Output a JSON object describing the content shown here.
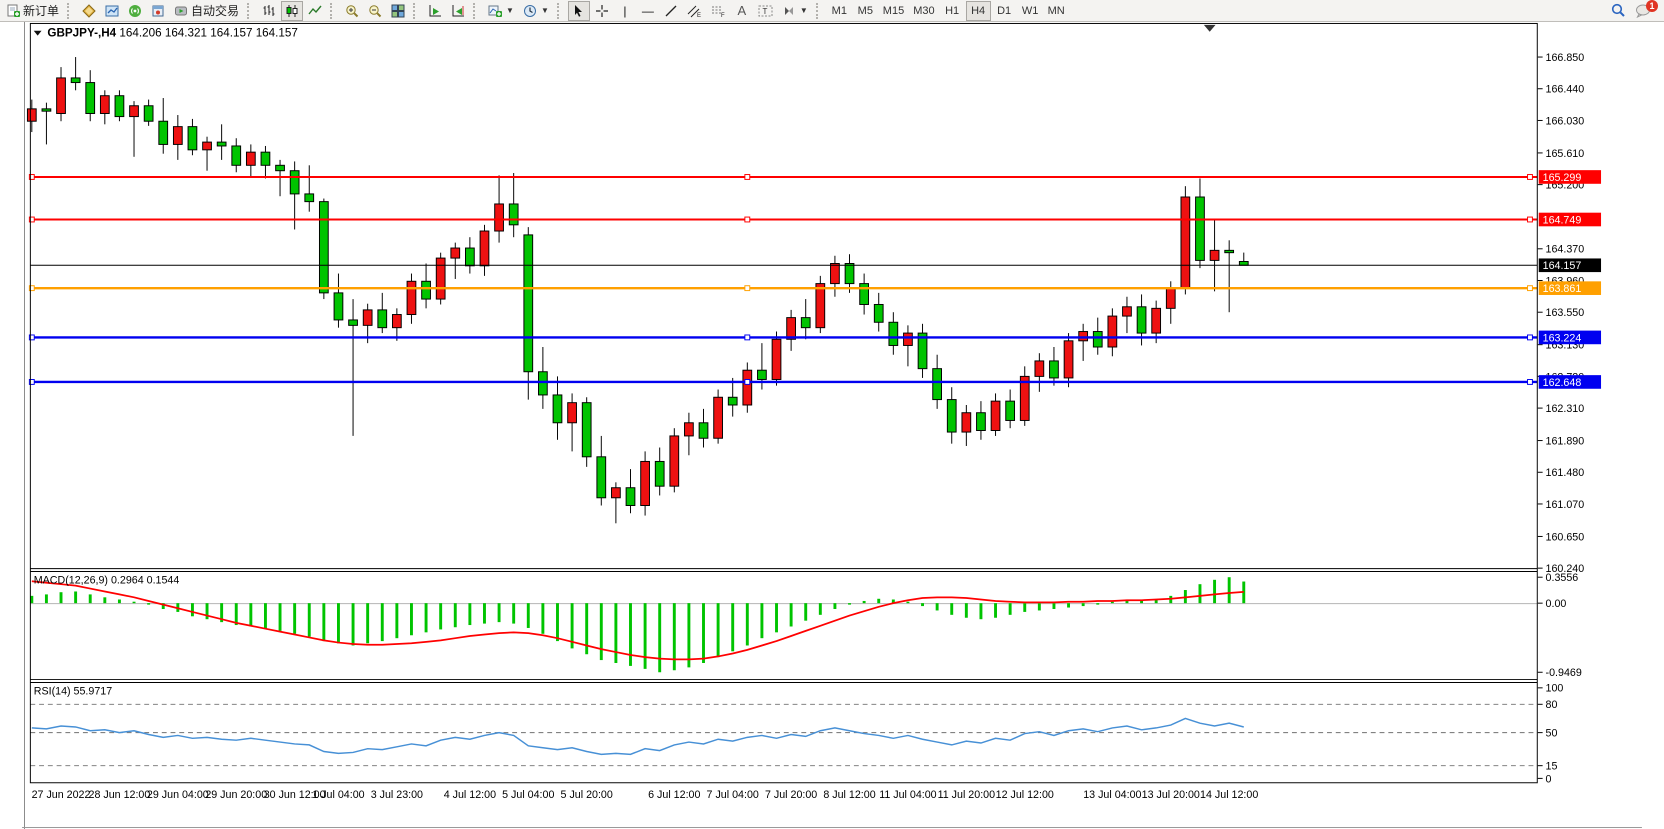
{
  "toolbar": {
    "new_order_label": "新订单",
    "autotrading_label": "自动交易",
    "timeframes": [
      "M1",
      "M5",
      "M15",
      "M30",
      "H1",
      "H4",
      "D1",
      "W1",
      "MN"
    ],
    "active_timeframe": "H4",
    "chat_badge": "1"
  },
  "chart_data": {
    "type": "candlestick",
    "symbol": "GBPJPY-",
    "timeframe": "H4",
    "title": "GBPJPY-,H4",
    "ohlc_text": "164.206 164.321 164.157 164.157",
    "ohlc": {
      "open": "164.206",
      "high": "164.321",
      "low": "164.157",
      "close": "164.157"
    },
    "colors": {
      "bull": "#ee1111",
      "bear": "#00c400",
      "outline": "#000000",
      "macd_hist": "#00c400",
      "macd_signal": "#ff0000",
      "rsi_line": "#4790d6",
      "level_red": "#ff0000",
      "level_blue": "#0000f0",
      "level_orange": "#ffa000",
      "bid": "#000000"
    },
    "price_axis_ticks": [
      "166.850",
      "166.440",
      "166.030",
      "165.610",
      "165.200",
      "164.370",
      "163.960",
      "163.550",
      "163.130",
      "162.720",
      "162.310",
      "161.890",
      "161.480",
      "161.070",
      "160.650",
      "160.240"
    ],
    "hlines": [
      {
        "price": 165.299,
        "label": "165.299",
        "color": "#ff0000",
        "width": 2,
        "role": "level"
      },
      {
        "price": 164.749,
        "label": "164.749",
        "color": "#ff0000",
        "width": 2,
        "role": "level"
      },
      {
        "price": 164.157,
        "label": "164.157",
        "color": "#000000",
        "width": 1,
        "role": "bid"
      },
      {
        "price": 163.861,
        "label": "163.861",
        "color": "#ffa000",
        "width": 2.5,
        "role": "level"
      },
      {
        "price": 163.224,
        "label": "163.224",
        "color": "#0000f0",
        "width": 2.5,
        "role": "level"
      },
      {
        "price": 162.648,
        "label": "162.648",
        "color": "#0000f0",
        "width": 2.5,
        "role": "level"
      }
    ],
    "candles": [
      [
        166.02,
        166.3,
        165.88,
        166.18
      ],
      [
        166.18,
        166.26,
        165.72,
        166.15
      ],
      [
        166.12,
        166.72,
        166.02,
        166.58
      ],
      [
        166.58,
        166.85,
        166.42,
        166.52
      ],
      [
        166.52,
        166.68,
        166.02,
        166.12
      ],
      [
        166.12,
        166.42,
        165.98,
        166.35
      ],
      [
        166.35,
        166.42,
        166.02,
        166.08
      ],
      [
        166.08,
        166.28,
        165.56,
        166.22
      ],
      [
        166.22,
        166.3,
        165.96,
        166.02
      ],
      [
        166.02,
        166.32,
        165.6,
        165.72
      ],
      [
        165.72,
        166.1,
        165.52,
        165.95
      ],
      [
        165.95,
        166.05,
        165.58,
        165.65
      ],
      [
        165.65,
        165.82,
        165.38,
        165.75
      ],
      [
        165.75,
        165.98,
        165.52,
        165.7
      ],
      [
        165.7,
        165.8,
        165.36,
        165.45
      ],
      [
        165.45,
        165.72,
        165.3,
        165.62
      ],
      [
        165.62,
        165.7,
        165.28,
        165.45
      ],
      [
        165.45,
        165.52,
        165.05,
        165.38
      ],
      [
        165.38,
        165.5,
        164.62,
        165.08
      ],
      [
        165.08,
        165.45,
        164.85,
        164.98
      ],
      [
        164.98,
        165.02,
        163.72,
        163.8
      ],
      [
        163.8,
        164.05,
        163.35,
        163.45
      ],
      [
        163.45,
        163.72,
        161.95,
        163.38
      ],
      [
        163.38,
        163.66,
        163.15,
        163.58
      ],
      [
        163.58,
        163.8,
        163.28,
        163.35
      ],
      [
        163.35,
        163.6,
        163.18,
        163.52
      ],
      [
        163.52,
        164.05,
        163.4,
        163.95
      ],
      [
        163.95,
        164.18,
        163.6,
        163.72
      ],
      [
        163.72,
        164.32,
        163.65,
        164.25
      ],
      [
        164.25,
        164.45,
        163.98,
        164.38
      ],
      [
        164.38,
        164.52,
        164.05,
        164.15
      ],
      [
        164.15,
        164.68,
        164.02,
        164.6
      ],
      [
        164.6,
        165.32,
        164.45,
        164.95
      ],
      [
        164.95,
        165.35,
        164.52,
        164.68
      ],
      [
        164.55,
        164.65,
        162.42,
        162.78
      ],
      [
        162.78,
        163.1,
        162.3,
        162.48
      ],
      [
        162.48,
        162.72,
        161.9,
        162.12
      ],
      [
        162.12,
        162.5,
        161.75,
        162.38
      ],
      [
        162.38,
        162.45,
        161.55,
        161.68
      ],
      [
        161.68,
        161.95,
        161.05,
        161.15
      ],
      [
        161.15,
        161.35,
        160.82,
        161.28
      ],
      [
        161.28,
        161.52,
        160.95,
        161.05
      ],
      [
        161.05,
        161.75,
        160.92,
        161.62
      ],
      [
        161.62,
        161.8,
        161.18,
        161.3
      ],
      [
        161.3,
        162.05,
        161.22,
        161.95
      ],
      [
        161.95,
        162.25,
        161.7,
        162.12
      ],
      [
        162.12,
        162.3,
        161.8,
        161.92
      ],
      [
        161.92,
        162.55,
        161.85,
        162.45
      ],
      [
        162.45,
        162.7,
        162.2,
        162.35
      ],
      [
        162.35,
        162.9,
        162.25,
        162.8
      ],
      [
        162.8,
        163.15,
        162.55,
        162.68
      ],
      [
        162.68,
        163.3,
        162.6,
        163.2
      ],
      [
        163.2,
        163.58,
        163.05,
        163.48
      ],
      [
        163.48,
        163.72,
        163.2,
        163.35
      ],
      [
        163.35,
        164.02,
        163.28,
        163.92
      ],
      [
        163.92,
        164.28,
        163.75,
        164.18
      ],
      [
        164.18,
        164.3,
        163.8,
        163.92
      ],
      [
        163.92,
        164.05,
        163.52,
        163.65
      ],
      [
        163.65,
        163.8,
        163.3,
        163.42
      ],
      [
        163.42,
        163.55,
        163.0,
        163.12
      ],
      [
        163.12,
        163.38,
        162.85,
        163.28
      ],
      [
        163.28,
        163.4,
        162.7,
        162.82
      ],
      [
        162.82,
        163.0,
        162.3,
        162.42
      ],
      [
        162.42,
        162.58,
        161.85,
        162.0
      ],
      [
        162.0,
        162.35,
        161.82,
        162.25
      ],
      [
        162.25,
        162.4,
        161.9,
        162.02
      ],
      [
        162.02,
        162.5,
        161.95,
        162.4
      ],
      [
        162.4,
        162.55,
        162.05,
        162.15
      ],
      [
        162.15,
        162.85,
        162.08,
        162.72
      ],
      [
        162.72,
        163.02,
        162.52,
        162.92
      ],
      [
        162.92,
        163.1,
        162.6,
        162.7
      ],
      [
        162.7,
        163.28,
        162.58,
        163.18
      ],
      [
        163.18,
        163.4,
        162.92,
        163.3
      ],
      [
        163.3,
        163.48,
        163.0,
        163.1
      ],
      [
        163.1,
        163.6,
        162.98,
        163.5
      ],
      [
        163.5,
        163.75,
        163.28,
        163.62
      ],
      [
        163.62,
        163.78,
        163.12,
        163.28
      ],
      [
        163.28,
        163.7,
        163.15,
        163.6
      ],
      [
        163.6,
        163.95,
        163.4,
        163.86
      ],
      [
        163.86,
        165.18,
        163.78,
        165.04
      ],
      [
        165.04,
        165.28,
        164.12,
        164.22
      ],
      [
        164.22,
        164.75,
        163.82,
        164.35
      ],
      [
        164.35,
        164.48,
        163.55,
        164.32
      ],
      [
        164.206,
        164.321,
        164.157,
        164.157
      ]
    ],
    "x_labels": [
      {
        "text": "27 Jun 2022",
        "i": 2
      },
      {
        "text": "28 Jun 12:00",
        "i": 6
      },
      {
        "text": "29 Jun 04:00",
        "i": 10
      },
      {
        "text": "29 Jun 20:00",
        "i": 14
      },
      {
        "text": "30 Jun 12:00",
        "i": 18
      },
      {
        "text": "1 Jul 04:00",
        "i": 21
      },
      {
        "text": "3 Jul 23:00",
        "i": 25
      },
      {
        "text": "4 Jul 12:00",
        "i": 30
      },
      {
        "text": "5 Jul 04:00",
        "i": 34
      },
      {
        "text": "5 Jul 20:00",
        "i": 38
      },
      {
        "text": "6 Jul 12:00",
        "i": 44
      },
      {
        "text": "7 Jul 04:00",
        "i": 48
      },
      {
        "text": "7 Jul 20:00",
        "i": 52
      },
      {
        "text": "8 Jul 12:00",
        "i": 56
      },
      {
        "text": "11 Jul 04:00",
        "i": 60
      },
      {
        "text": "11 Jul 20:00",
        "i": 64
      },
      {
        "text": "12 Jul 12:00",
        "i": 68
      },
      {
        "text": "13 Jul 04:00",
        "i": 74
      },
      {
        "text": "13 Jul 20:00",
        "i": 78
      },
      {
        "text": "14 Jul 12:00",
        "i": 82
      }
    ],
    "macd": {
      "label": "MACD(12,26,9) 0.2964 0.1544",
      "value": "0.2964",
      "signal_value": "0.1544",
      "scale": [
        "0.3556",
        "0.00",
        "-0.9469"
      ],
      "hist": [
        0.1,
        0.12,
        0.15,
        0.16,
        0.12,
        0.08,
        0.05,
        0.02,
        -0.02,
        -0.08,
        -0.12,
        -0.18,
        -0.22,
        -0.26,
        -0.3,
        -0.32,
        -0.35,
        -0.38,
        -0.42,
        -0.46,
        -0.52,
        -0.55,
        -0.58,
        -0.55,
        -0.52,
        -0.48,
        -0.44,
        -0.4,
        -0.36,
        -0.33,
        -0.3,
        -0.28,
        -0.26,
        -0.28,
        -0.34,
        -0.42,
        -0.52,
        -0.62,
        -0.7,
        -0.78,
        -0.82,
        -0.86,
        -0.9,
        -0.9469,
        -0.92,
        -0.88,
        -0.82,
        -0.74,
        -0.66,
        -0.58,
        -0.48,
        -0.4,
        -0.32,
        -0.24,
        -0.16,
        -0.08,
        -0.02,
        0.03,
        0.06,
        0.05,
        0.02,
        -0.04,
        -0.1,
        -0.16,
        -0.2,
        -0.22,
        -0.2,
        -0.16,
        -0.12,
        -0.1,
        -0.08,
        -0.06,
        -0.04,
        -0.02,
        0.02,
        0.04,
        0.03,
        0.05,
        0.1,
        0.18,
        0.26,
        0.32,
        0.3556,
        0.2964
      ],
      "signal": [
        0.3,
        0.28,
        0.26,
        0.24,
        0.2,
        0.16,
        0.12,
        0.08,
        0.03,
        -0.02,
        -0.07,
        -0.12,
        -0.17,
        -0.22,
        -0.27,
        -0.31,
        -0.35,
        -0.39,
        -0.43,
        -0.47,
        -0.51,
        -0.54,
        -0.56,
        -0.57,
        -0.57,
        -0.56,
        -0.55,
        -0.53,
        -0.51,
        -0.48,
        -0.45,
        -0.43,
        -0.41,
        -0.4,
        -0.41,
        -0.44,
        -0.48,
        -0.53,
        -0.58,
        -0.63,
        -0.67,
        -0.71,
        -0.74,
        -0.76,
        -0.77,
        -0.77,
        -0.76,
        -0.73,
        -0.69,
        -0.64,
        -0.58,
        -0.52,
        -0.45,
        -0.38,
        -0.31,
        -0.24,
        -0.17,
        -0.11,
        -0.05,
        0.0,
        0.04,
        0.07,
        0.08,
        0.08,
        0.07,
        0.05,
        0.03,
        0.02,
        0.01,
        0.01,
        0.01,
        0.02,
        0.02,
        0.03,
        0.03,
        0.04,
        0.04,
        0.05,
        0.06,
        0.08,
        0.1,
        0.12,
        0.14,
        0.1544
      ]
    },
    "rsi": {
      "label": "RSI(14) 55.9717",
      "value": "55.9717",
      "levels": [
        80,
        50,
        15
      ],
      "scale": [
        "100",
        "80",
        "50",
        "15",
        "0"
      ],
      "values": [
        55,
        54,
        57,
        56,
        52,
        53,
        50,
        52,
        48,
        45,
        47,
        44,
        45,
        43,
        42,
        44,
        42,
        40,
        38,
        37,
        30,
        28,
        29,
        33,
        32,
        35,
        38,
        36,
        42,
        45,
        43,
        47,
        50,
        47,
        36,
        34,
        32,
        34,
        30,
        27,
        28,
        27,
        33,
        31,
        37,
        40,
        38,
        43,
        41,
        45,
        47,
        44,
        48,
        46,
        52,
        55,
        52,
        49,
        47,
        44,
        47,
        43,
        40,
        37,
        41,
        39,
        44,
        42,
        49,
        51,
        47,
        52,
        54,
        51,
        55,
        57,
        53,
        55,
        58,
        65,
        60,
        57,
        60,
        55.97
      ]
    }
  }
}
